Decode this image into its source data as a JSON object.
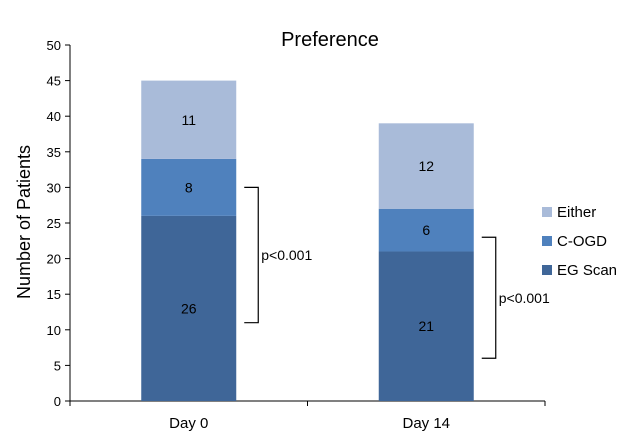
{
  "chart_data": {
    "type": "bar",
    "stacked": true,
    "title": "Preference",
    "xlabel": "",
    "ylabel": "Number of Patients",
    "categories": [
      "Day 0",
      "Day 14"
    ],
    "ylim": [
      0,
      50
    ],
    "yticks": [
      0,
      5,
      10,
      15,
      20,
      25,
      30,
      35,
      40,
      45,
      50
    ],
    "grid": false,
    "legend": "right",
    "series": [
      {
        "name": "EG Scan",
        "values": [
          26,
          21
        ],
        "color": "#3f6698"
      },
      {
        "name": "C-OGD",
        "values": [
          8,
          6
        ],
        "color": "#4f81bd"
      },
      {
        "name": "Either",
        "values": [
          11,
          12
        ],
        "color": "#a9bbd9"
      }
    ],
    "annotations": [
      {
        "text": "p<0.001",
        "category": "Day 0",
        "bracket_from": 11,
        "bracket_to": 30
      },
      {
        "text": "p<0.001",
        "category": "Day 14",
        "bracket_from": 6,
        "bracket_to": 23
      }
    ]
  }
}
